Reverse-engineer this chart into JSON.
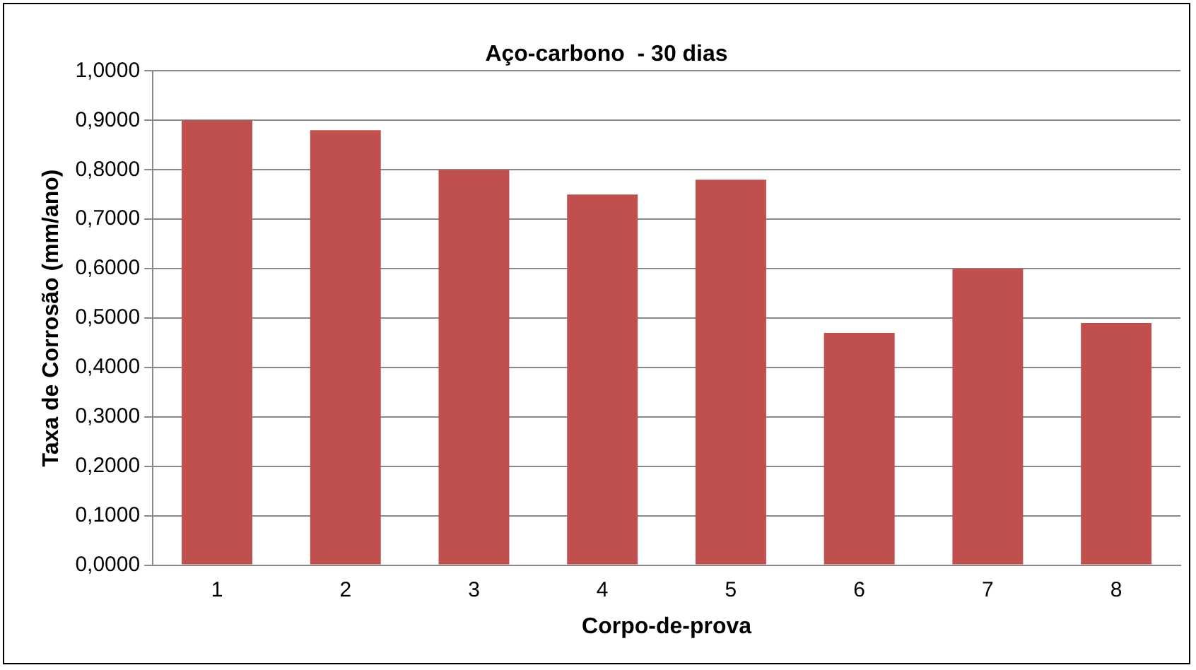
{
  "chart_data": {
    "type": "bar",
    "title": "Aço-carbono  - 30 dias",
    "xlabel": "Corpo-de-prova",
    "ylabel": "Taxa de Corrosão (mm/ano)",
    "categories": [
      "1",
      "2",
      "3",
      "4",
      "5",
      "6",
      "7",
      "8"
    ],
    "values": [
      0.9,
      0.88,
      0.8,
      0.75,
      0.78,
      0.47,
      0.6,
      0.49
    ],
    "color": "#c0504d",
    "ylim": [
      0,
      1
    ],
    "yticks": [
      {
        "value": 0,
        "label": "0,0000"
      },
      {
        "value": 0.1,
        "label": "0,1000"
      },
      {
        "value": 0.2,
        "label": "0,2000"
      },
      {
        "value": 0.3,
        "label": "0,3000"
      },
      {
        "value": 0.4,
        "label": "0,4000"
      },
      {
        "value": 0.5,
        "label": "0,5000"
      },
      {
        "value": 0.6,
        "label": "0,6000"
      },
      {
        "value": 0.7,
        "label": "0,7000"
      },
      {
        "value": 0.8,
        "label": "0,8000"
      },
      {
        "value": 0.9,
        "label": "0,9000"
      },
      {
        "value": 1,
        "label": "1,0000"
      }
    ],
    "grid": "y",
    "legend": false
  }
}
